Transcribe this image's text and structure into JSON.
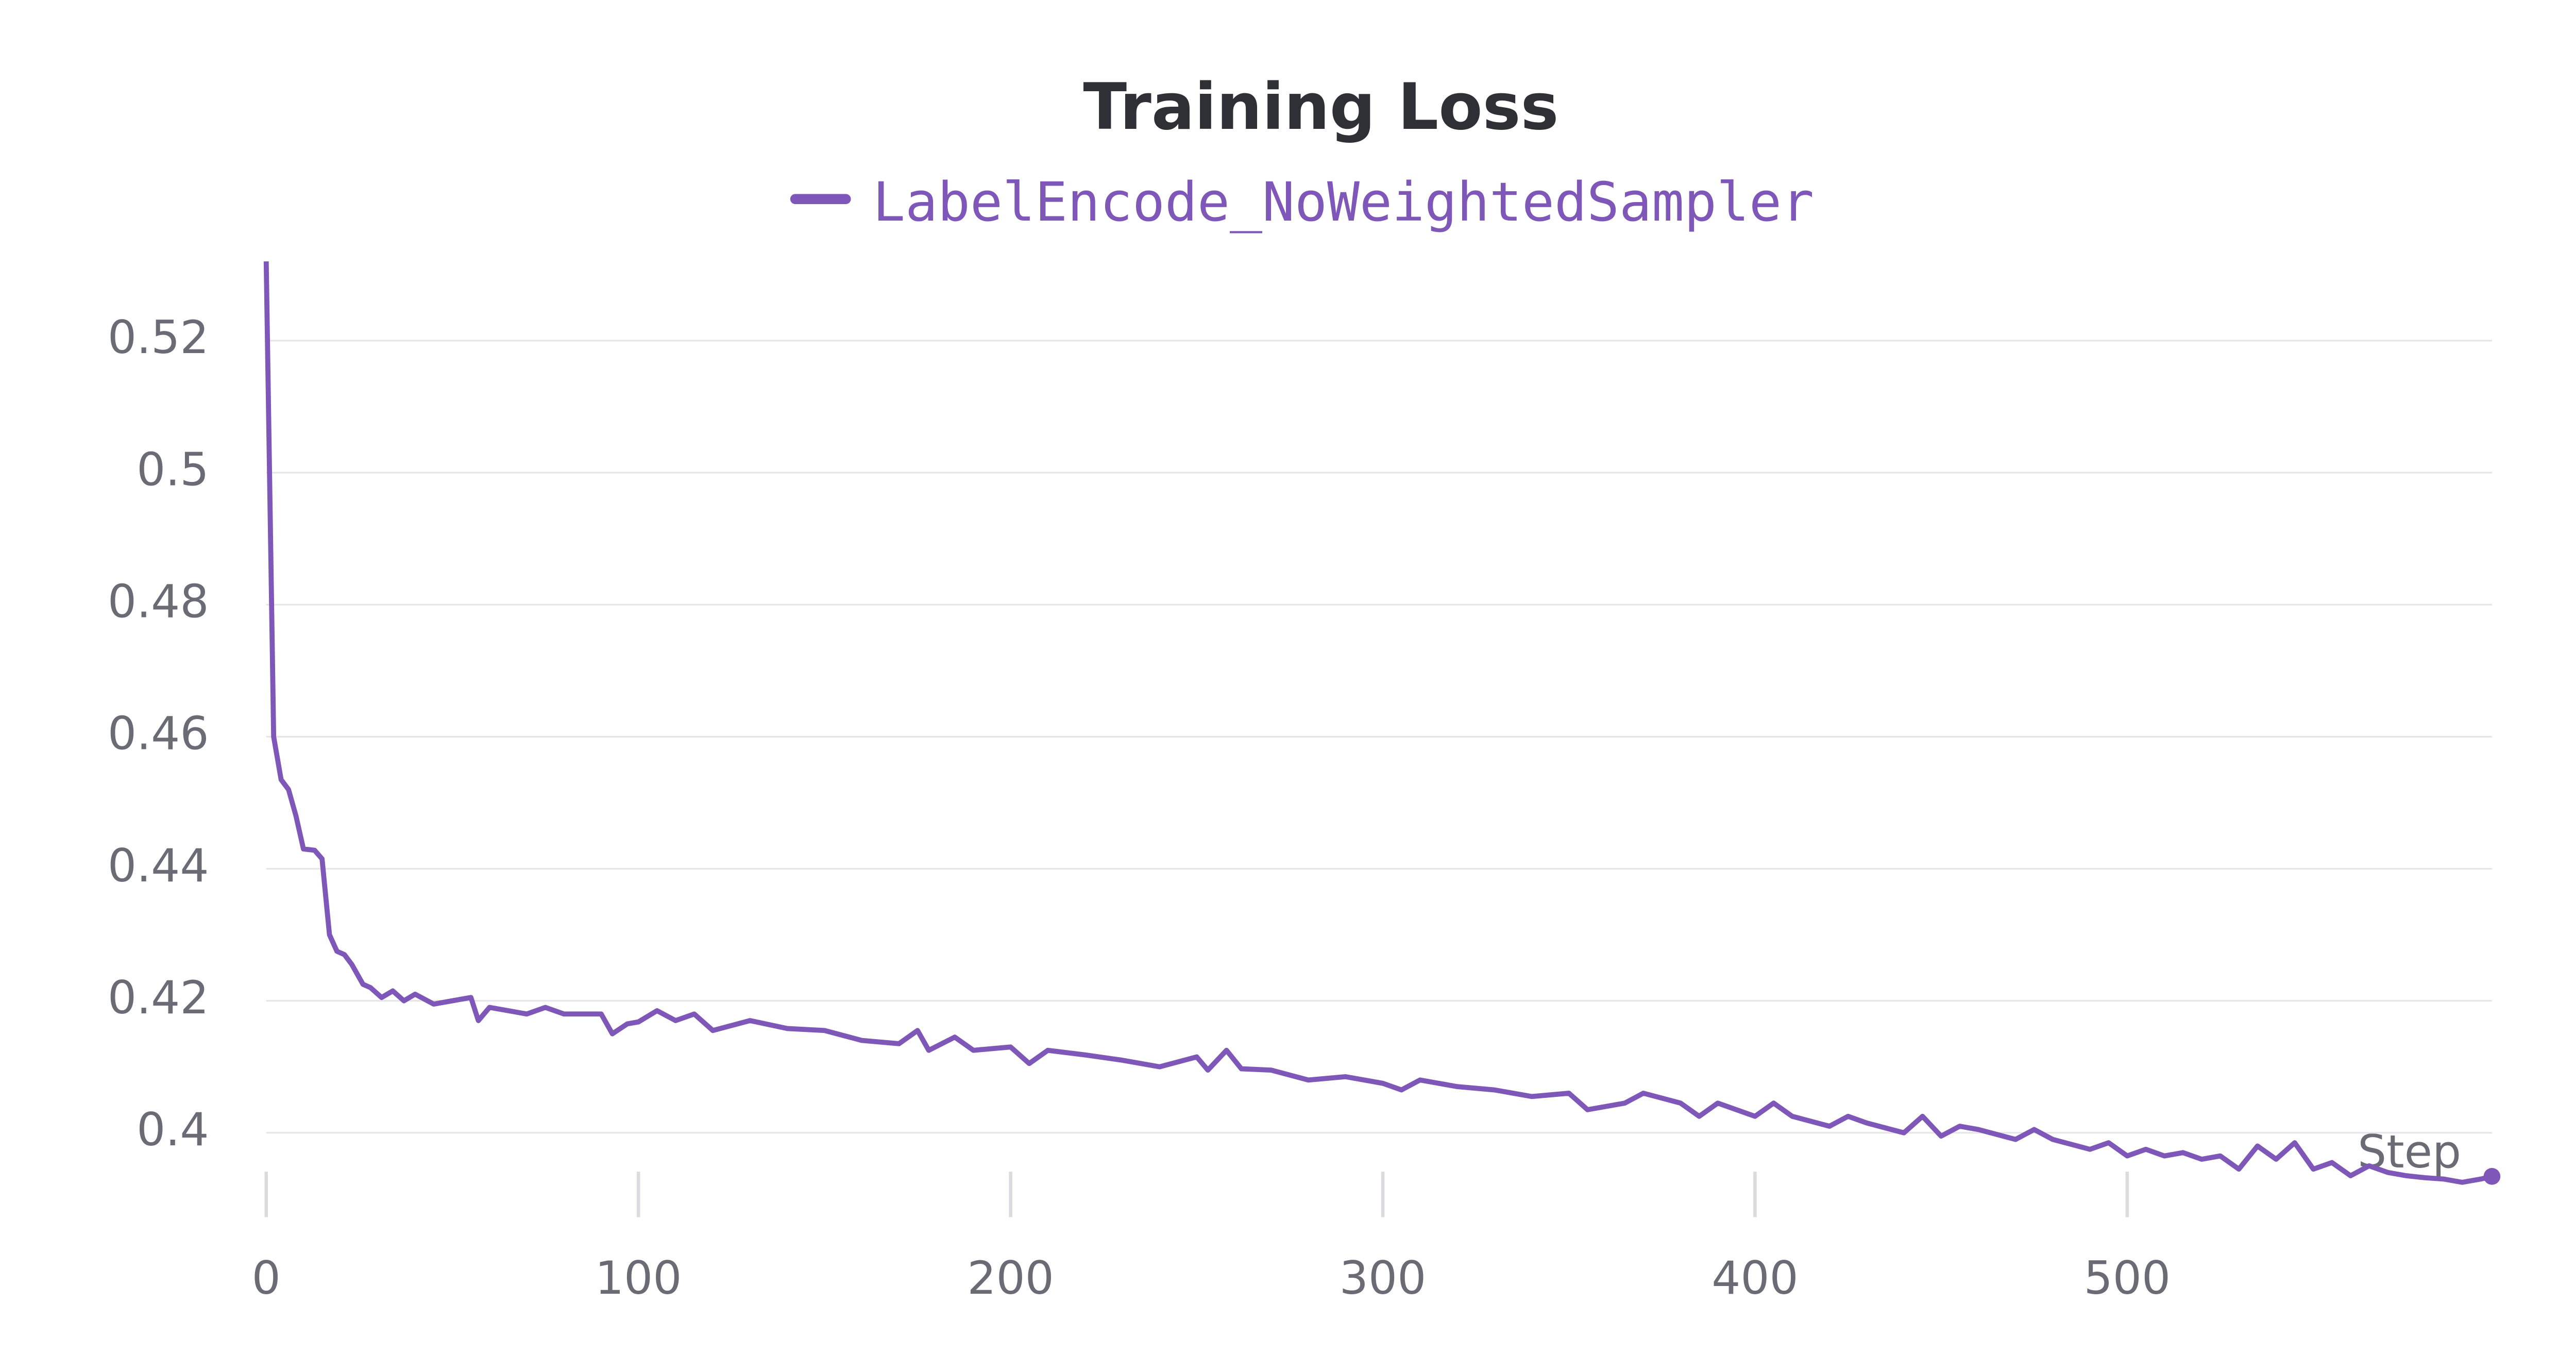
{
  "chart_data": {
    "type": "line",
    "title": "Training Loss",
    "x_label": "Step",
    "series": [
      {
        "name": "LabelEncode_NoWeightedSampler",
        "color": "#7e57b8",
        "x": [
          0,
          2,
          4,
          6,
          8,
          10,
          13,
          15,
          17,
          19,
          21,
          23,
          26,
          28,
          31,
          34,
          37,
          40,
          45,
          50,
          55,
          57,
          60,
          65,
          70,
          75,
          80,
          85,
          90,
          93,
          97,
          100,
          105,
          110,
          115,
          120,
          130,
          140,
          150,
          160,
          170,
          175,
          178,
          185,
          190,
          200,
          205,
          210,
          220,
          230,
          240,
          250,
          253,
          258,
          262,
          270,
          280,
          290,
          300,
          305,
          310,
          320,
          330,
          340,
          350,
          355,
          365,
          370,
          380,
          385,
          390,
          400,
          405,
          410,
          420,
          425,
          430,
          440,
          445,
          450,
          455,
          460,
          470,
          475,
          480,
          490,
          495,
          500,
          505,
          510,
          515,
          520,
          525,
          530,
          535,
          540,
          545,
          550,
          555,
          560,
          565,
          570,
          575,
          580,
          585,
          590,
          595,
          598
        ],
        "values": [
          0.532,
          0.46,
          0.4535,
          0.452,
          0.448,
          0.443,
          0.4428,
          0.4415,
          0.43,
          0.4275,
          0.427,
          0.4255,
          0.4225,
          0.422,
          0.4205,
          0.4215,
          0.42,
          0.421,
          0.4195,
          0.42,
          0.4205,
          0.417,
          0.419,
          0.4185,
          0.418,
          0.419,
          0.418,
          0.418,
          0.418,
          0.415,
          0.4165,
          0.4168,
          0.4185,
          0.417,
          0.418,
          0.4155,
          0.417,
          0.4158,
          0.4155,
          0.414,
          0.4135,
          0.4155,
          0.4125,
          0.4145,
          0.4125,
          0.413,
          0.4105,
          0.4125,
          0.4118,
          0.411,
          0.41,
          0.4115,
          0.4095,
          0.4125,
          0.4097,
          0.4095,
          0.408,
          0.4085,
          0.4075,
          0.4065,
          0.408,
          0.407,
          0.4065,
          0.4055,
          0.406,
          0.4035,
          0.4045,
          0.406,
          0.4045,
          0.4025,
          0.4045,
          0.4025,
          0.4045,
          0.4025,
          0.401,
          0.4025,
          0.4015,
          0.4,
          0.4025,
          0.3995,
          0.401,
          0.4005,
          0.399,
          0.4005,
          0.399,
          0.3975,
          0.3985,
          0.3965,
          0.3975,
          0.3965,
          0.397,
          0.396,
          0.3965,
          0.3945,
          0.398,
          0.396,
          0.3985,
          0.3945,
          0.3955,
          0.3935,
          0.395,
          0.394,
          0.3935,
          0.3932,
          0.393,
          0.3925,
          0.393,
          0.3934
        ]
      }
    ],
    "xlim": [
      0,
      598
    ],
    "xticks": [
      0,
      100,
      200,
      300,
      400,
      500
    ],
    "ylim": [
      0.3885,
      0.532
    ],
    "yticks": [
      0.4,
      0.42,
      0.44,
      0.46,
      0.48,
      0.5,
      0.52
    ],
    "grid": true
  }
}
